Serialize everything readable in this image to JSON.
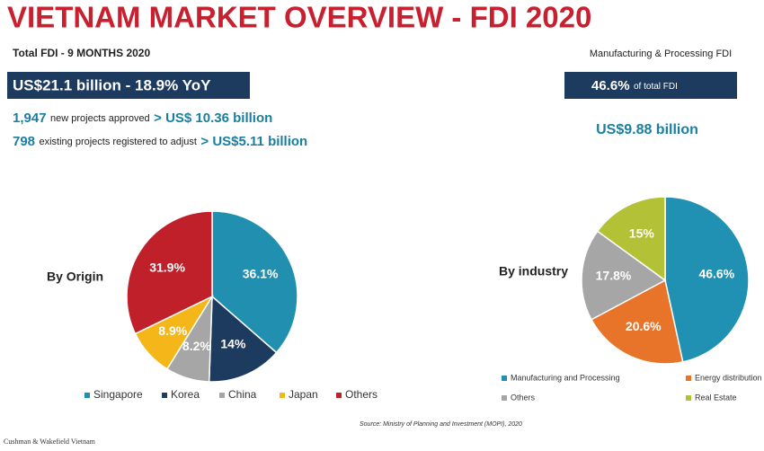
{
  "title": "VIETNAM MARKET OVERVIEW - FDI 2020",
  "total": {
    "label": "Total FDI - 9 MONTHS 2020",
    "banner": "US$21.1 billion - 18.9% YoY",
    "lines": [
      {
        "count": "1,947",
        "text": "new projects approved",
        "amount": "> US$ 10.36 billion"
      },
      {
        "count": "798",
        "text": "existing projects registered to adjust",
        "amount": "> US$5.11 billion"
      }
    ]
  },
  "manufacturing": {
    "label": "Manufacturing & Processing FDI",
    "share": "46.6%",
    "share_text": "of total FDI",
    "amount": "US$9.88 billion"
  },
  "chart_data": [
    {
      "type": "pie",
      "title": "By Origin",
      "categories": [
        "Singapore",
        "Korea",
        "China",
        "Japan",
        "Others"
      ],
      "values": [
        36.1,
        14,
        8.2,
        8.9,
        31.9
      ],
      "value_labels": [
        "36.1%",
        "14%",
        "8.2%",
        "8.9%",
        "31.9%"
      ],
      "colors": [
        "#2190b0",
        "#1d3a5f",
        "#a6a6a6",
        "#f5b619",
        "#c0202a"
      ]
    },
    {
      "type": "pie",
      "title": "By industry",
      "categories": [
        "Manufacturing and Processing",
        "Energy distribution",
        "Others",
        "Real Estate"
      ],
      "values": [
        46.6,
        20.6,
        17.8,
        15
      ],
      "value_labels": [
        "46.6%",
        "20.6%",
        "17.8%",
        "15%"
      ],
      "colors": [
        "#2191b3",
        "#e8742a",
        "#a6a6a6",
        "#b3c136"
      ]
    }
  ],
  "source": "Source: Ministry of Planning and Investment (MOPI), 2020",
  "footer": "Cushman & Wakefield Vietnam"
}
